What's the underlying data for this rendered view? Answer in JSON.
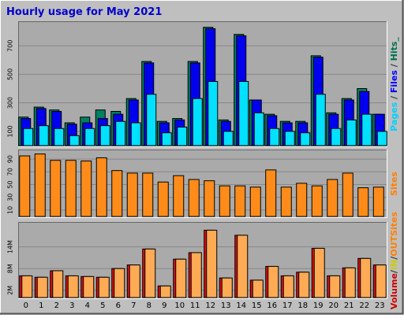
{
  "chart_data": [
    {
      "type": "bar",
      "title": "Hourly usage for May 2021",
      "panel": "top",
      "categories": [
        "0",
        "1",
        "2",
        "3",
        "4",
        "5",
        "6",
        "7",
        "8",
        "9",
        "10",
        "11",
        "12",
        "13",
        "14",
        "15",
        "16",
        "17",
        "18",
        "19",
        "20",
        "21",
        "22",
        "23"
      ],
      "yticks": [
        100,
        300,
        500,
        700
      ],
      "ylim": [
        0,
        850
      ],
      "grid": true,
      "legend_right": [
        {
          "text": "Pages",
          "color": "#00d0ff"
        },
        {
          "text": " / ",
          "color": "#333333"
        },
        {
          "text": "Files",
          "color": "#0000ff"
        },
        {
          "text": " / ",
          "color": "#333333"
        },
        {
          "text": "Hits",
          "color": "#007050"
        },
        {
          "text": "_",
          "color": "#007050"
        }
      ],
      "series": [
        {
          "name": "Hits",
          "color": "#008060",
          "values": [
            200,
            270,
            250,
            160,
            200,
            250,
            240,
            330,
            590,
            170,
            190,
            590,
            830,
            180,
            780,
            320,
            220,
            170,
            170,
            630,
            230,
            330,
            400,
            220
          ]
        },
        {
          "name": "Files",
          "color": "#0000ee",
          "values": [
            190,
            260,
            240,
            150,
            160,
            190,
            220,
            320,
            580,
            160,
            180,
            580,
            820,
            170,
            770,
            320,
            210,
            160,
            160,
            620,
            220,
            320,
            380,
            220
          ]
        },
        {
          "name": "Pages",
          "color": "#00e0ff",
          "values": [
            120,
            140,
            120,
            70,
            120,
            140,
            170,
            160,
            360,
            90,
            130,
            330,
            450,
            100,
            450,
            230,
            120,
            100,
            90,
            360,
            120,
            180,
            220,
            100
          ]
        }
      ]
    },
    {
      "type": "bar",
      "panel": "middle",
      "categories": [
        "0",
        "1",
        "2",
        "3",
        "4",
        "5",
        "6",
        "7",
        "8",
        "9",
        "10",
        "11",
        "12",
        "13",
        "14",
        "15",
        "16",
        "17",
        "18",
        "19",
        "20",
        "21",
        "22",
        "23"
      ],
      "yticks": [
        10,
        30,
        50,
        70,
        90
      ],
      "ylim": [
        0,
        100
      ],
      "grid": true,
      "legend_right": [
        {
          "text": "Sites",
          "color": "#ff8000"
        }
      ],
      "series": [
        {
          "name": "Sites",
          "color": "#ff8c1a",
          "values": [
            95,
            98,
            88,
            88,
            87,
            92,
            72,
            68,
            68,
            54,
            64,
            58,
            56,
            48,
            48,
            46,
            73,
            46,
            52,
            48,
            58,
            68,
            45,
            46
          ]
        }
      ]
    },
    {
      "type": "bar",
      "panel": "bottom",
      "categories": [
        "0",
        "1",
        "2",
        "3",
        "4",
        "5",
        "6",
        "7",
        "8",
        "9",
        "10",
        "11",
        "12",
        "13",
        "14",
        "15",
        "16",
        "17",
        "18",
        "19",
        "20",
        "21",
        "22",
        "23"
      ],
      "yticks": [
        "2M",
        "8M",
        "14M"
      ],
      "ytick_values": [
        2,
        8,
        14
      ],
      "ylim": [
        0,
        20
      ],
      "grid": true,
      "legend_right": [
        {
          "text": "Volume",
          "color": "#cc0000"
        },
        {
          "text": "/",
          "color": "#333333"
        },
        {
          "text": "IN",
          "color": "#cccc00"
        },
        {
          "text": "/",
          "color": "#333333"
        },
        {
          "text": "OUT",
          "color": "#ff8000"
        },
        {
          "text": "Sites",
          "color": "#ff8000"
        }
      ],
      "series": [
        {
          "name": "Volume",
          "color": "#dd1111",
          "values": [
            6.0,
            5.6,
            7.4,
            6.0,
            5.8,
            5.6,
            8.0,
            9.0,
            13.4,
            3.2,
            10.6,
            12.4,
            18.6,
            5.4,
            17.2,
            4.8,
            8.6,
            6.0,
            7.0,
            13.6,
            6.0,
            8.2,
            10.8,
            9.0
          ]
        },
        {
          "name": "OUT",
          "color": "#ffaa55",
          "values": [
            6.0,
            5.6,
            7.4,
            6.0,
            5.8,
            5.6,
            8.0,
            9.0,
            13.4,
            3.2,
            10.6,
            12.4,
            18.6,
            5.4,
            17.2,
            4.8,
            8.6,
            6.0,
            7.0,
            13.6,
            6.0,
            8.2,
            10.8,
            9.0
          ]
        }
      ]
    }
  ]
}
